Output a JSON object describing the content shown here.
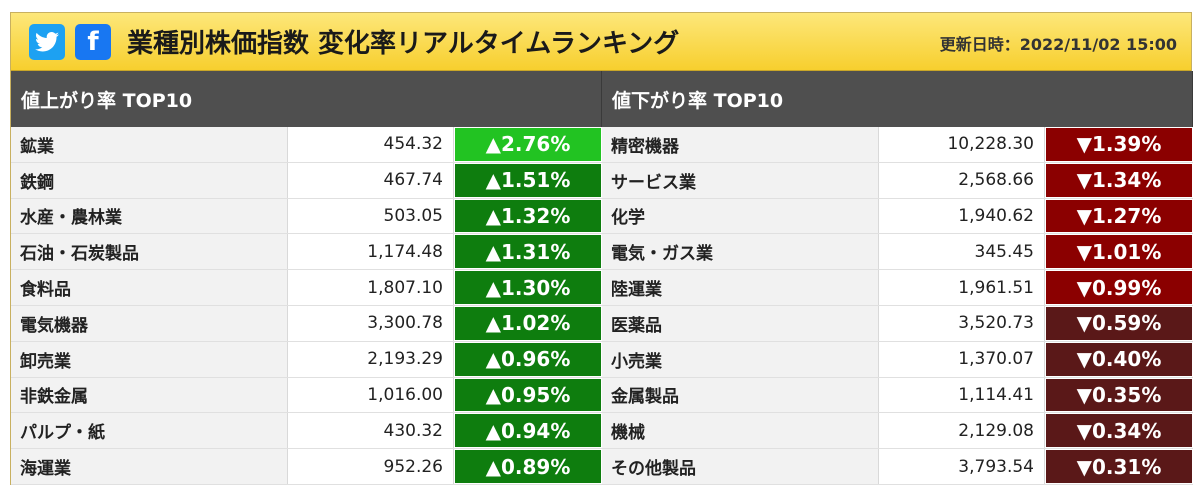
{
  "header": {
    "title": "業種別株価指数 変化率リアルタイムランキング",
    "updated_label": "更新日時：2022/11/02 15:00",
    "twitter_icon": "twitter-icon",
    "facebook_glyph": "f"
  },
  "colors": {
    "up_strong": "#22c322",
    "up": "#0e7d0e",
    "down_strong": "#8b0000",
    "down": "#5a1818"
  },
  "gainers": {
    "heading": "値上がり率 TOP10",
    "rows": [
      {
        "name": "鉱業",
        "value": "454.32",
        "change": "▲2.76%"
      },
      {
        "name": "鉄鋼",
        "value": "467.74",
        "change": "▲1.51%"
      },
      {
        "name": "水産・農林業",
        "value": "503.05",
        "change": "▲1.32%"
      },
      {
        "name": "石油・石炭製品",
        "value": "1,174.48",
        "change": "▲1.31%"
      },
      {
        "name": "食料品",
        "value": "1,807.10",
        "change": "▲1.30%"
      },
      {
        "name": "電気機器",
        "value": "3,300.78",
        "change": "▲1.02%"
      },
      {
        "name": "卸売業",
        "value": "2,193.29",
        "change": "▲0.96%"
      },
      {
        "name": "非鉄金属",
        "value": "1,016.00",
        "change": "▲0.95%"
      },
      {
        "name": "パルプ・紙",
        "value": "430.32",
        "change": "▲0.94%"
      },
      {
        "name": "海運業",
        "value": "952.26",
        "change": "▲0.89%"
      }
    ]
  },
  "losers": {
    "heading": "値下がり率 TOP10",
    "rows": [
      {
        "name": "精密機器",
        "value": "10,228.30",
        "change": "▼1.39%"
      },
      {
        "name": "サービス業",
        "value": "2,568.66",
        "change": "▼1.34%"
      },
      {
        "name": "化学",
        "value": "1,940.62",
        "change": "▼1.27%"
      },
      {
        "name": "電気・ガス業",
        "value": "345.45",
        "change": "▼1.01%"
      },
      {
        "name": "陸運業",
        "value": "1,961.51",
        "change": "▼0.99%"
      },
      {
        "name": "医薬品",
        "value": "3,520.73",
        "change": "▼0.59%"
      },
      {
        "name": "小売業",
        "value": "1,370.07",
        "change": "▼0.40%"
      },
      {
        "name": "金属製品",
        "value": "1,114.41",
        "change": "▼0.35%"
      },
      {
        "name": "機械",
        "value": "2,129.08",
        "change": "▼0.34%"
      },
      {
        "name": "その他製品",
        "value": "3,793.54",
        "change": "▼0.31%"
      }
    ]
  }
}
